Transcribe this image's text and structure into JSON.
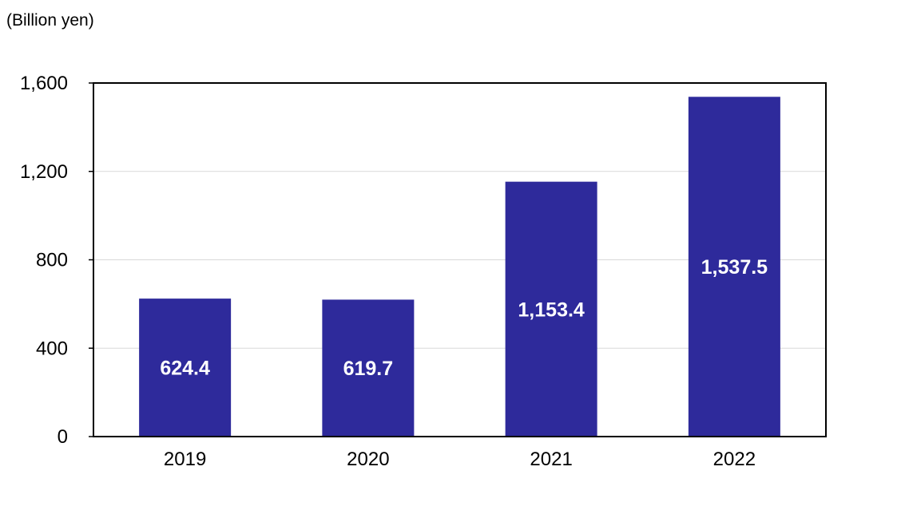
{
  "chart_data": {
    "type": "bar",
    "unit_label": "(Billion yen)",
    "categories": [
      "2019",
      "2020",
      "2021",
      "2022"
    ],
    "values": [
      624.4,
      619.7,
      1153.4,
      1537.5
    ],
    "value_labels": [
      "624.4",
      "619.7",
      "1,153.4",
      "1,537.5"
    ],
    "ylim": [
      0,
      1600
    ],
    "y_ticks": [
      0,
      400,
      800,
      1200,
      1600
    ],
    "y_tick_labels": [
      "0",
      "400",
      "800",
      "1,200",
      "1,600"
    ],
    "grid": true,
    "colors": {
      "bar": "#2e2a9b",
      "grid": "#d9d9d9",
      "axis": "#000000"
    }
  }
}
